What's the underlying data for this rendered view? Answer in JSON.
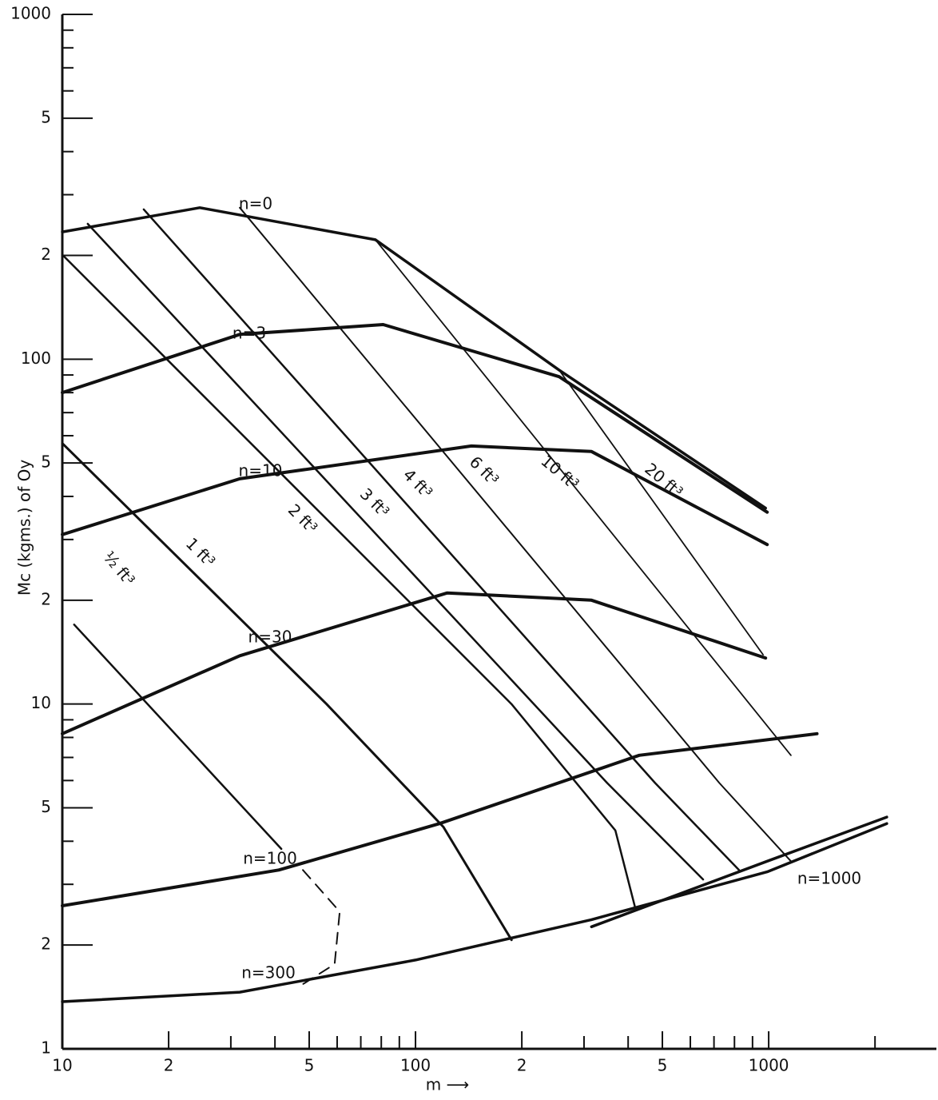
{
  "chart_data": {
    "type": "line",
    "xlabel": "m ⟶",
    "ylabel": "Mc (kgms.) of Oy",
    "log_x": true,
    "log_y": true,
    "color": "#111111",
    "xlim": [
      10,
      3000
    ],
    "xticks": [
      10,
      {
        "value": 20,
        "label": "2"
      },
      {
        "value": 50,
        "label": "5"
      },
      100,
      {
        "value": 200,
        "label": "2"
      },
      {
        "value": 500,
        "label": "5"
      },
      1000
    ],
    "xminorticks": [
      30,
      40,
      60,
      70,
      80,
      90,
      300,
      400,
      600,
      700,
      800,
      900,
      2000
    ],
    "ylim": [
      1,
      1000
    ],
    "yticks": [
      1,
      {
        "value": 2,
        "label": "2"
      },
      {
        "value": 5,
        "label": "5"
      },
      10,
      {
        "value": 20,
        "label": "2"
      },
      {
        "value": 50,
        "label": "5"
      },
      100,
      {
        "value": 200,
        "label": "2"
      },
      {
        "value": 500,
        "label": "5"
      },
      1000
    ],
    "yminorticks": [
      3,
      4,
      6,
      7,
      8,
      9,
      30,
      40,
      60,
      70,
      80,
      90,
      300,
      400,
      600,
      700,
      800,
      900
    ],
    "series": [
      {
        "name": "n=0",
        "x": [
          10,
          24.5,
          77,
          255,
          980
        ],
        "values": [
          234,
          275,
          222,
          93,
          37
        ]
      },
      {
        "name": "n=3",
        "x": [
          10,
          31.8,
          81,
          255,
          990
        ],
        "values": [
          80,
          118,
          126,
          89,
          36
        ]
      },
      {
        "name": "n=10",
        "x": [
          10,
          31.8,
          144,
          315,
          990
        ],
        "values": [
          31,
          45,
          56,
          54,
          29
        ]
      },
      {
        "name": "n=30",
        "x": [
          10,
          31.8,
          123,
          315,
          980
        ],
        "values": [
          8.2,
          13.8,
          21,
          20,
          13.6
        ]
      },
      {
        "name": "n=100",
        "x": [
          10,
          41,
          117,
          430,
          1370
        ],
        "values": [
          2.6,
          3.3,
          4.5,
          7.1,
          8.2
        ]
      },
      {
        "name": "n=300",
        "x": [
          10,
          31.8,
          100,
          315,
          990,
          2160
        ],
        "values": [
          1.37,
          1.46,
          1.81,
          2.37,
          3.26,
          4.5
        ]
      },
      {
        "name": "n=1000",
        "x": [
          315,
          990,
          2160
        ],
        "values": [
          2.26,
          3.5,
          4.7
        ]
      },
      {
        "name": "½ ft³",
        "x": [
          10.8,
          41.7
        ],
        "values": [
          17,
          3.8
        ]
      },
      {
        "name": "1 ft³",
        "x": [
          10,
          56,
          120,
          187
        ],
        "values": [
          57,
          10,
          4.4,
          2.07
        ]
      },
      {
        "name": "2 ft³",
        "x": [
          10,
          187,
          368,
          419
        ],
        "values": [
          201,
          10,
          4.3,
          2.56
        ]
      },
      {
        "name": "3 ft³",
        "x": [
          11.8,
          349,
          652
        ],
        "values": [
          247,
          5.9,
          3.1
        ]
      },
      {
        "name": "4 ft³",
        "x": [
          17,
          477,
          824
        ],
        "values": [
          272,
          5.9,
          3.3
        ]
      },
      {
        "name": "6 ft³",
        "x": [
          31.8,
          725,
          1156
        ],
        "values": [
          275,
          5.9,
          3.5
        ]
      },
      {
        "name": "10 ft³",
        "x": [
          77,
          1156
        ],
        "values": [
          222,
          7.1
        ]
      },
      {
        "name": "20 ft³",
        "x": [
          255,
          964
        ],
        "values": [
          93,
          13.9
        ]
      },
      {
        "x": [
          48,
          61,
          59,
          48
        ],
        "values": [
          3.3,
          2.5,
          1.76,
          1.54
        ],
        "dashed": true
      }
    ]
  }
}
